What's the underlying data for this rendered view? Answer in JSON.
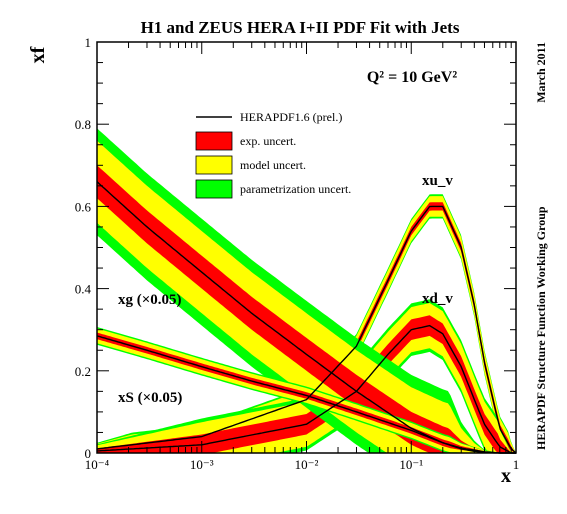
{
  "chart_data": {
    "type": "line",
    "title": "H1 and ZEUS HERA I+II PDF Fit with Jets",
    "scale_label": "Q² = 10 GeV²",
    "xlabel": "x",
    "ylabel": "xf",
    "x_scale": "log",
    "xlim": [
      0.0001,
      1
    ],
    "ylim": [
      0,
      1
    ],
    "x_tick_labels": [
      "10⁻⁴",
      "10⁻³",
      "10⁻²",
      "10⁻¹",
      "1"
    ],
    "y_tick_labels": [
      "0",
      "0.2",
      "0.4",
      "0.6",
      "0.8",
      "1"
    ],
    "grid": false,
    "legend_position": "top-center",
    "side_labels": {
      "date": "March 2011",
      "group": "HERAPDF Structure Function Working Group"
    },
    "legend": [
      {
        "label": "HERAPDF1.6 (prel.)",
        "kind": "line",
        "color": "#000000"
      },
      {
        "label": "exp. uncert.",
        "kind": "band",
        "color": "#ff0000"
      },
      {
        "label": "model uncert.",
        "kind": "band",
        "color": "#ffff00"
      },
      {
        "label": "parametrization uncert.",
        "kind": "band",
        "color": "#00ff00"
      }
    ],
    "series": [
      {
        "name": "xu_v",
        "x": [
          0.0001,
          0.001,
          0.01,
          0.03,
          0.06,
          0.1,
          0.15,
          0.2,
          0.3,
          0.4,
          0.5,
          0.7,
          0.9,
          1
        ],
        "y": [
          0.01,
          0.04,
          0.13,
          0.26,
          0.42,
          0.54,
          0.6,
          0.6,
          0.5,
          0.36,
          0.22,
          0.06,
          0.01,
          0.0
        ],
        "exp_unc": 0.01,
        "model_unc": 0.015,
        "param_unc": 0.015
      },
      {
        "name": "xd_v",
        "x": [
          0.0001,
          0.001,
          0.01,
          0.03,
          0.06,
          0.1,
          0.15,
          0.2,
          0.3,
          0.4,
          0.5,
          0.7,
          0.9,
          1
        ],
        "y": [
          0.005,
          0.02,
          0.07,
          0.15,
          0.24,
          0.3,
          0.31,
          0.29,
          0.21,
          0.13,
          0.07,
          0.015,
          0.0,
          0.0
        ],
        "exp_unc": 0.025,
        "model_unc": 0.03,
        "param_unc": 0.03
      },
      {
        "name": "xg (×0.05)",
        "x": [
          0.0001,
          0.0003,
          0.001,
          0.003,
          0.01,
          0.03,
          0.1,
          0.2,
          0.3,
          0.4,
          0.5,
          0.7,
          1
        ],
        "y": [
          0.66,
          0.55,
          0.44,
          0.34,
          0.24,
          0.15,
          0.06,
          0.025,
          0.01,
          0.004,
          0.001,
          0.0,
          0.0
        ],
        "exp_unc": 0.04,
        "model_unc": 0.06,
        "param_unc": 0.1
      },
      {
        "name": "xS (×0.05)",
        "x": [
          0.0001,
          0.0003,
          0.001,
          0.003,
          0.01,
          0.03,
          0.1,
          0.2,
          0.3,
          0.5,
          0.7,
          1
        ],
        "y": [
          0.285,
          0.25,
          0.21,
          0.175,
          0.14,
          0.1,
          0.055,
          0.025,
          0.012,
          0.003,
          0.0,
          0.0
        ],
        "exp_unc": 0.008,
        "model_unc": 0.01,
        "param_unc": 0.012
      }
    ]
  }
}
